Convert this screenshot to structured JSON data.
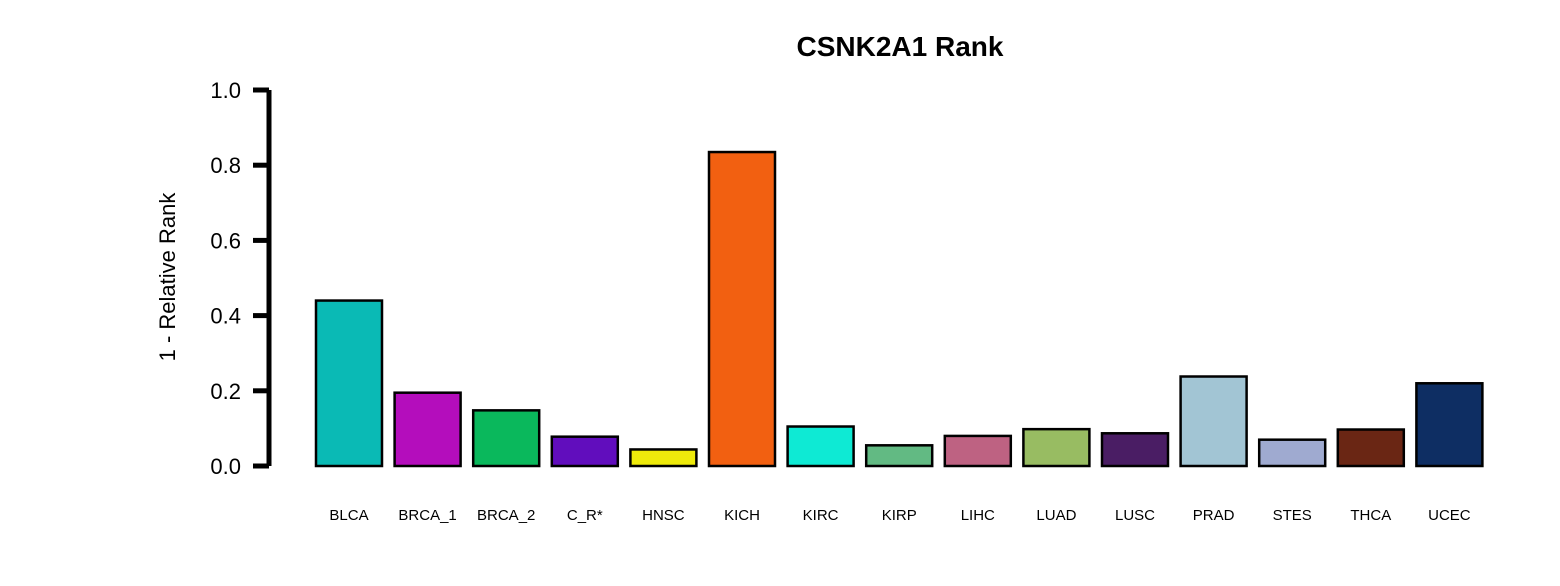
{
  "chart_data": {
    "type": "bar",
    "title": "CSNK2A1 Rank",
    "xlabel": "",
    "ylabel": "1 - Relative Rank",
    "ylim": [
      0,
      1
    ],
    "yticks": [
      "0.0",
      "0.2",
      "0.4",
      "0.6",
      "0.8",
      "1.0"
    ],
    "grid": false,
    "legend": "none",
    "categories": [
      "BLCA",
      "BRCA_1",
      "BRCA_2",
      "C_R*",
      "HNSC",
      "KICH",
      "KIRC",
      "KIRP",
      "LIHC",
      "LUAD",
      "LUSC",
      "PRAD",
      "STES",
      "THCA",
      "UCEC"
    ],
    "values": [
      0.44,
      0.195,
      0.148,
      0.078,
      0.044,
      0.835,
      0.105,
      0.055,
      0.08,
      0.098,
      0.087,
      0.238,
      0.07,
      0.097,
      0.22
    ],
    "colors": [
      "#0ABAB5",
      "#B40DBC",
      "#0AB85C",
      "#610DBD",
      "#EEEA0B",
      "#F26011",
      "#0EEAD4",
      "#62BA83",
      "#BE6282",
      "#98BC62",
      "#4A1D64",
      "#A2C5D4",
      "#9FAAD0",
      "#6A2614",
      "#0E2E63"
    ]
  }
}
